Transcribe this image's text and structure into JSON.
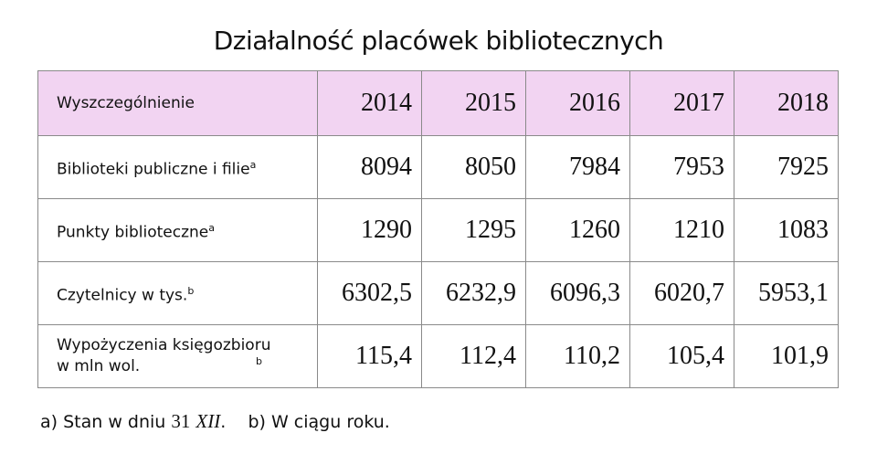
{
  "title": "Działalność placówek bibliotecznych",
  "table": {
    "header_label": "Wyszczególnienie",
    "years": [
      "2014",
      "2015",
      "2016",
      "2017",
      "2018"
    ],
    "header_bg": "#f2d4f2",
    "rows": [
      {
        "label": "Biblioteki publiczne i filie",
        "note": "a",
        "values": [
          "8094",
          "8050",
          "7984",
          "7953",
          "7925"
        ]
      },
      {
        "label": "Punkty biblioteczne",
        "note": "a",
        "values": [
          "1290",
          "1295",
          "1260",
          "1210",
          "1083"
        ]
      },
      {
        "label": "Czytelnicy w tys.",
        "note": "b",
        "values": [
          "6302,5",
          "6232,9",
          "6096,3",
          "6020,7",
          "5953,1"
        ]
      },
      {
        "label": "Wypożyczenia księgozbioru w mln wol.",
        "note": "b",
        "values": [
          "115,4",
          "112,4",
          "110,2",
          "105,4",
          "101,9"
        ]
      }
    ]
  },
  "footnotes": {
    "a_prefix": "a) Stan w dniu ",
    "a_day": "31",
    "a_month": "XII",
    "a_suffix": ".",
    "b": "b) W ciągu roku."
  }
}
